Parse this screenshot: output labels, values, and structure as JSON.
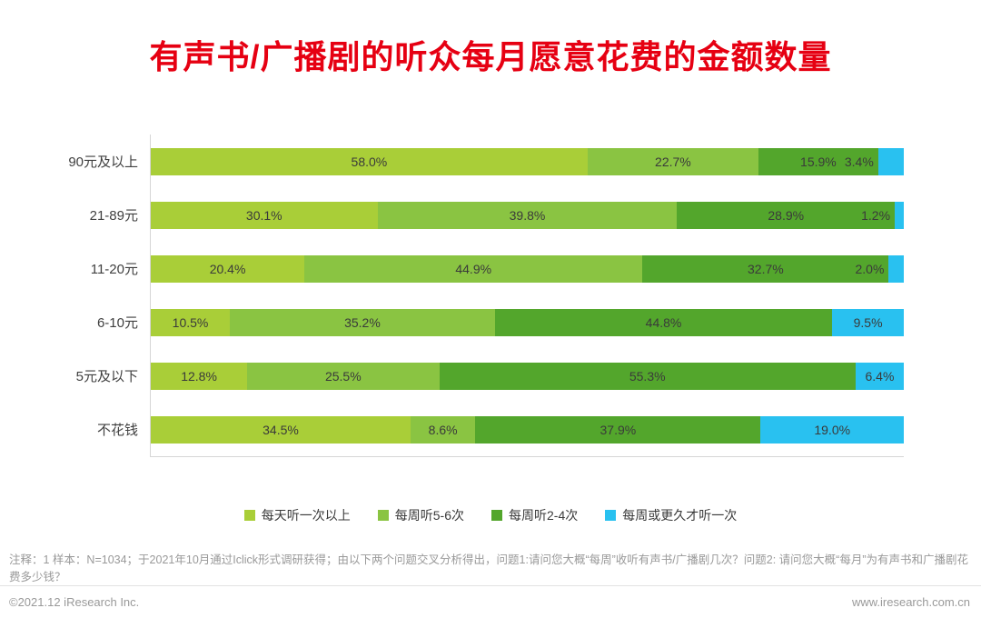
{
  "title": "有声书/广播剧的听众每月愿意花费的金额数量",
  "chart_data": {
    "type": "bar",
    "variant": "horizontal-stacked",
    "stacked": true,
    "unit": "%",
    "xlim": [
      0,
      100
    ],
    "grid": false,
    "legend_position": "bottom",
    "categories": [
      "90元及以上",
      "21-89元",
      "11-20元",
      "6-10元",
      "5元及以下",
      "不花钱"
    ],
    "series": [
      {
        "name": "每天听一次以上",
        "color": "#a9ce38",
        "values": [
          58.0,
          30.1,
          20.4,
          10.5,
          12.8,
          34.5
        ]
      },
      {
        "name": "每周听5-6次",
        "color": "#8ac442",
        "values": [
          22.7,
          39.8,
          44.9,
          35.2,
          25.5,
          8.6
        ]
      },
      {
        "name": "每周听2-4次",
        "color": "#53a62c",
        "values": [
          15.9,
          28.9,
          32.7,
          44.8,
          55.3,
          37.9
        ]
      },
      {
        "name": "每周或更久才听一次",
        "color": "#29c1f0",
        "values": [
          3.4,
          1.2,
          2.0,
          9.5,
          6.4,
          19.0
        ]
      }
    ]
  },
  "footer": {
    "note": "注释：1 样本：N=1034；于2021年10月通过Iclick形式调研获得；由以下两个问题交叉分析得出，问题1:请问您大概“每周”收听有声书/广播剧几次？问题2: 请问您大概“每月”为有声书和广播剧花费多少钱？",
    "copyright": "©2021.12 iResearch Inc.",
    "website": "www.iresearch.com.cn"
  },
  "colors": {
    "title": "#e60012",
    "axis": "#d6d6d6",
    "value_label_text": "#3a3a3a",
    "note_text": "#999999"
  }
}
